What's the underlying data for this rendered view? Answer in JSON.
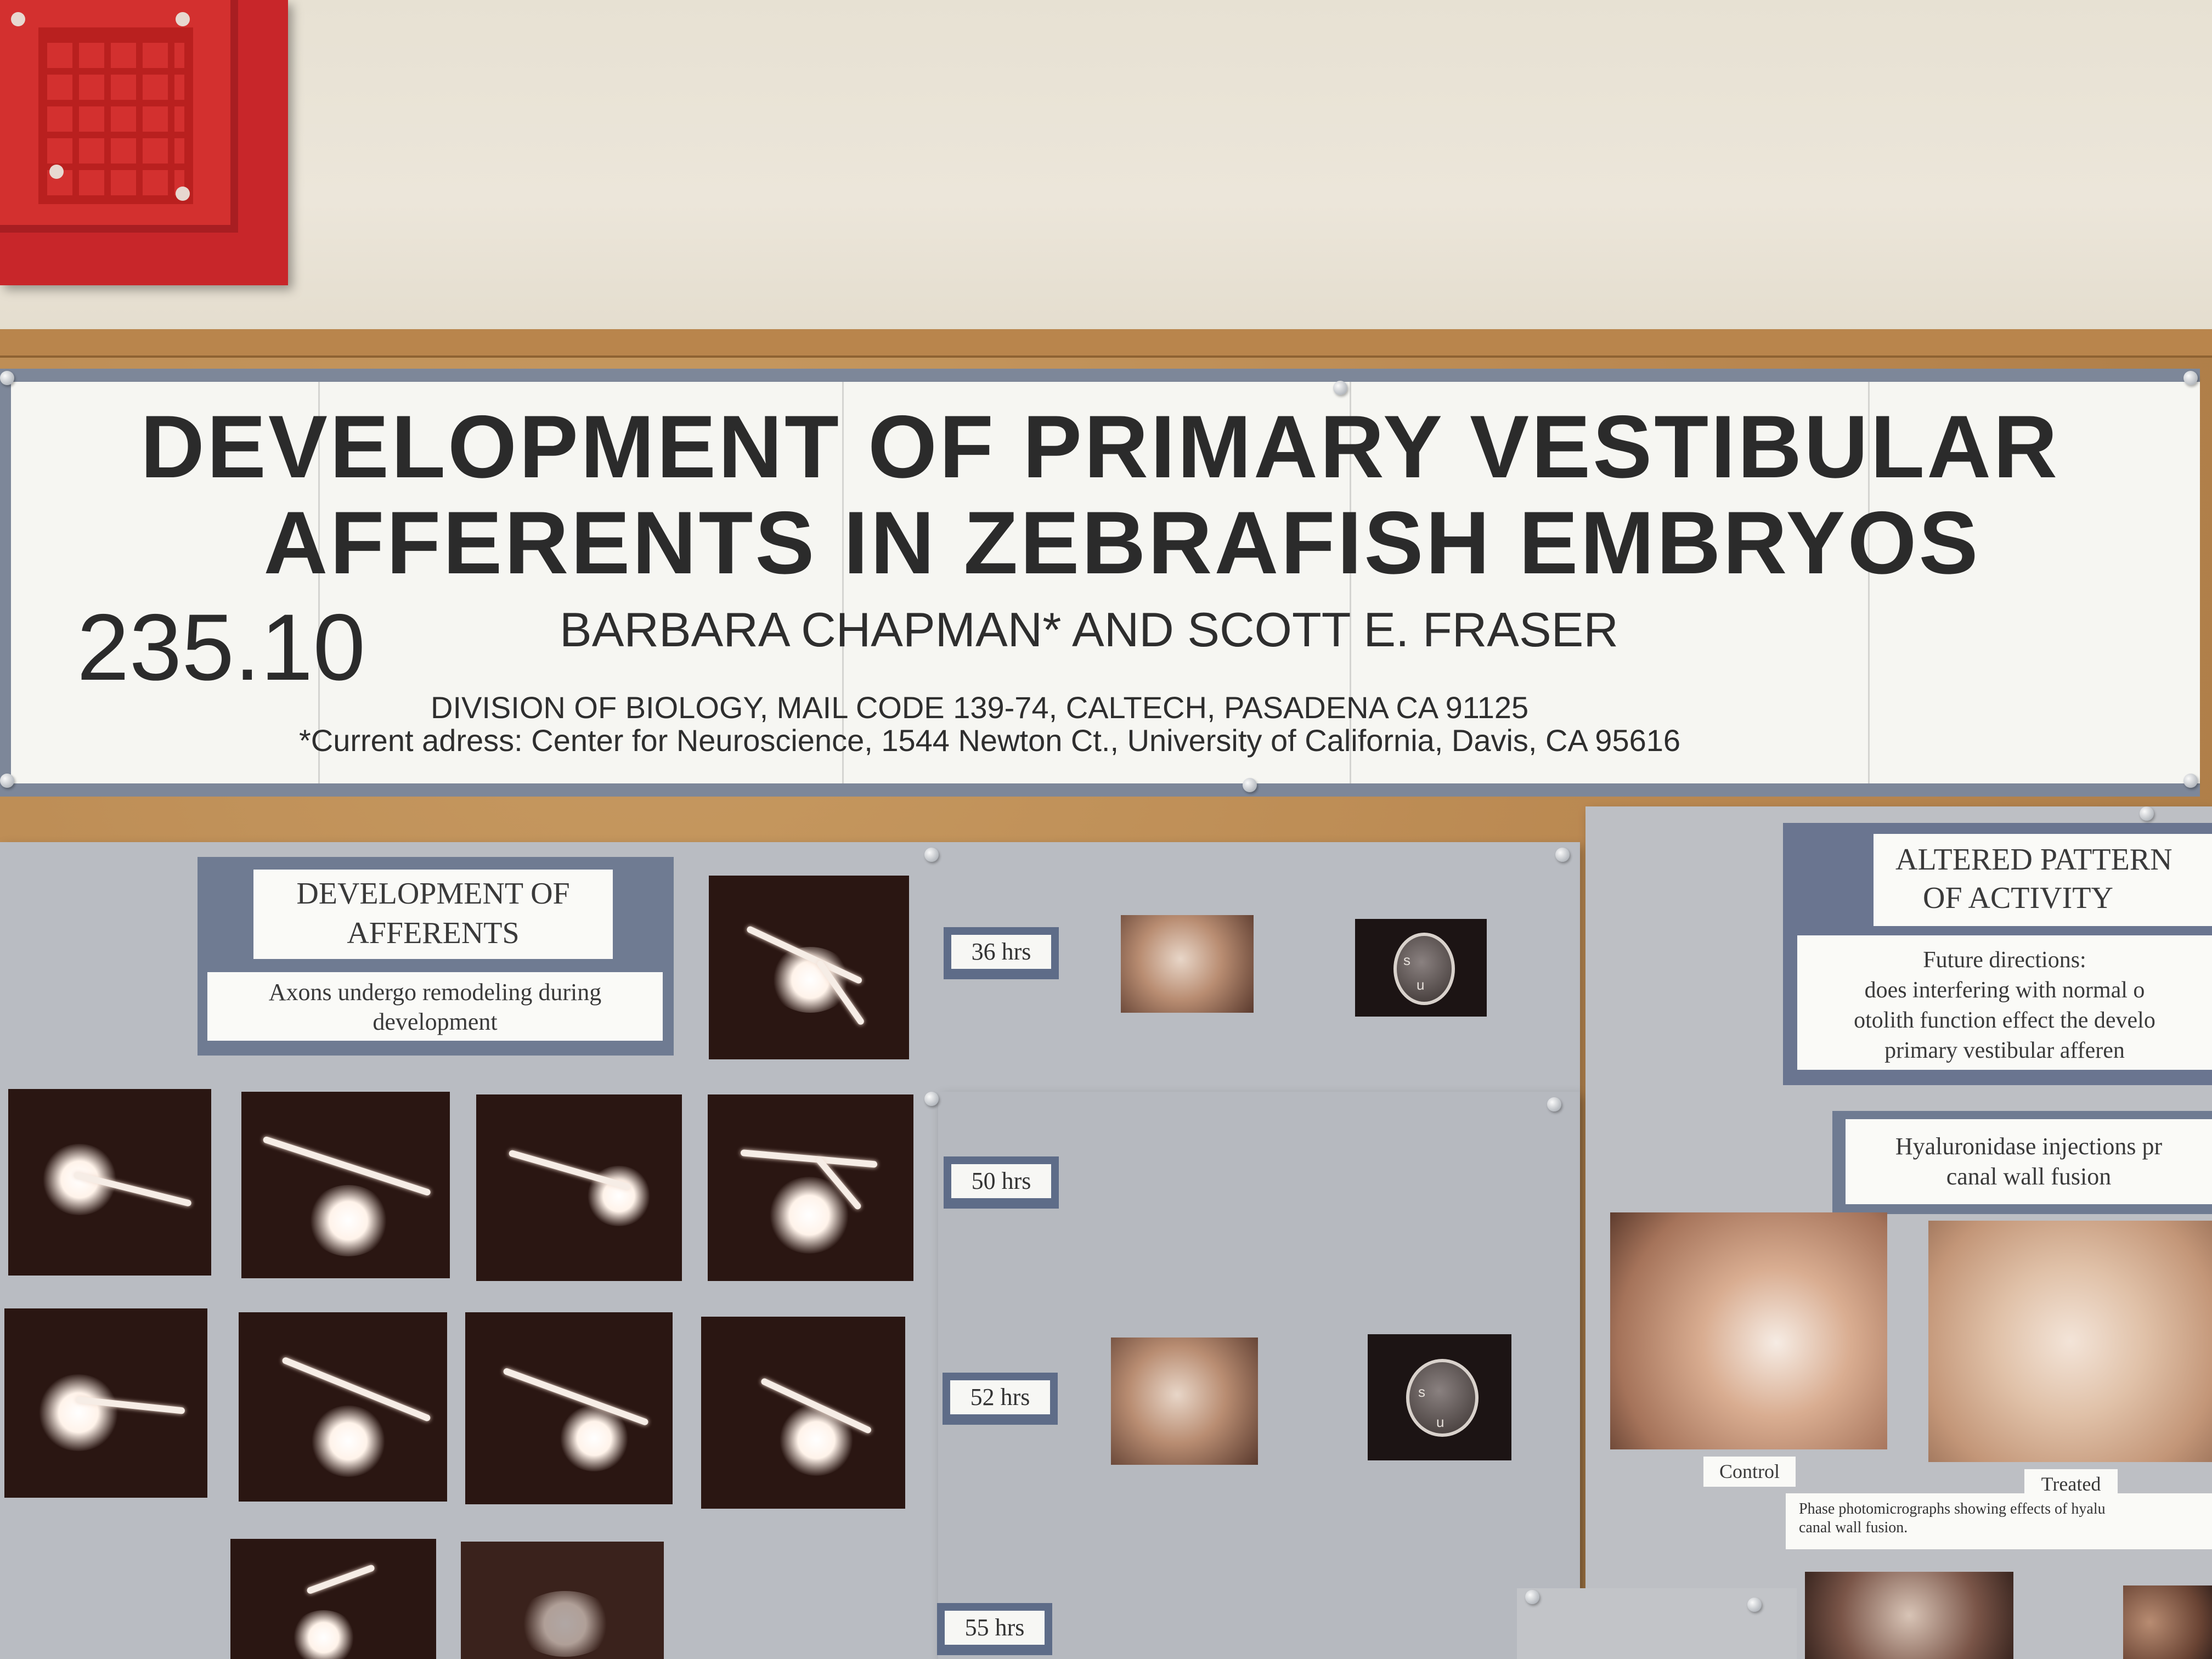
{
  "banner": {
    "title_line1": "DEVELOPMENT OF PRIMARY VESTIBULAR",
    "title_line2": "AFFERENTS IN ZEBRAFISH EMBRYOS",
    "poster_number": "235.10",
    "authors": "BARBARA CHAPMAN* AND SCOTT E. FRASER",
    "affiliation": "DIVISION OF BIOLOGY, MAIL CODE 139-74, CALTECH, PASADENA CA 91125",
    "current_address": "*Current  adress: Center for Neuroscience, 1544 Newton Ct., University of California, Davis, CA 95616"
  },
  "left_section": {
    "heading_line1": "DEVELOPMENT OF",
    "heading_line2": "AFFERENTS",
    "subtitle_line1": "Axons undergo remodeling during",
    "subtitle_line2": "development"
  },
  "time_labels": [
    "36 hrs",
    "50 hrs",
    "52 hrs",
    "55 hrs"
  ],
  "otolith_letters": {
    "s": "s",
    "u": "u"
  },
  "right_section": {
    "heading_line1": "ALTERED PATTERN",
    "heading_line2": "OF ACTIVITY",
    "future_line1": "Future directions:",
    "future_line2": "does interfering with normal o",
    "future_line3": "otolith function effect the develo",
    "future_line4": "primary vestibular afferen",
    "hyal_line1": "Hyaluronidase injections pr",
    "hyal_line2": "canal wall fusion",
    "label_control": "Control",
    "label_treated": "Treated",
    "caption_line1": "Phase photomicrographs showing effects of hyalu",
    "caption_line2": "canal wall fusion."
  },
  "colors": {
    "alarm_red": "#c8262a",
    "banner_border": "#7d8799",
    "board_grey": "#b9bcc2",
    "label_blue": "#5e6c88",
    "cork": "#b8864f"
  }
}
